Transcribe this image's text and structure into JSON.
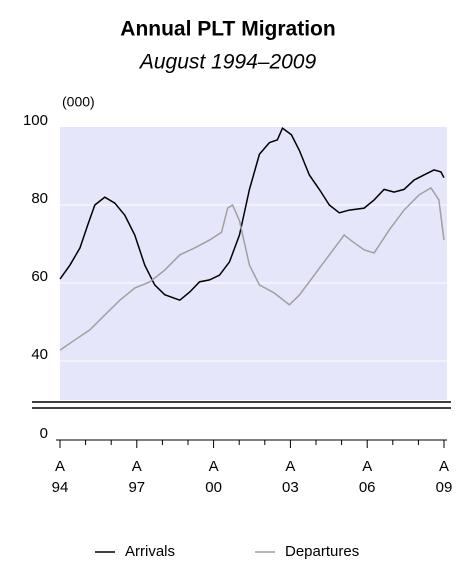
{
  "chart_data": {
    "type": "line",
    "title": "Annual PLT Migration",
    "subtitle": "August 1994–2009",
    "y_unit_label": "(000)",
    "xlim": [
      1994.58,
      2009.58
    ],
    "xticks": [
      {
        "value": 1994.58,
        "label": "94"
      },
      {
        "value": 1997.58,
        "label": "97"
      },
      {
        "value": 2000.58,
        "label": "00"
      },
      {
        "value": 2003.58,
        "label": "03"
      },
      {
        "value": 2006.58,
        "label": "06"
      },
      {
        "value": 2009.58,
        "label": "09"
      }
    ],
    "xtick_month_label": "A",
    "xminorticks": [
      1995.58,
      1996.58,
      1998.58,
      1999.58,
      2001.58,
      2002.58,
      2004.58,
      2005.58,
      2007.58,
      2008.58
    ],
    "ylim": [
      30,
      100
    ],
    "yticks": [
      0,
      40,
      60,
      80,
      100
    ],
    "axis_break": true,
    "grid": true,
    "background": "#e6e6fa",
    "series": [
      {
        "name": "Arrivals",
        "color": "#000000",
        "x": [
          1994.58,
          1994.97,
          1995.36,
          1995.67,
          1995.94,
          1996.33,
          1996.72,
          1997.11,
          1997.5,
          1997.89,
          1998.28,
          1998.67,
          1999.26,
          1999.65,
          2000.03,
          2000.42,
          2000.81,
          2001.2,
          2001.59,
          2001.98,
          2002.37,
          2002.76,
          2003.07,
          2003.27,
          2003.62,
          2003.93,
          2004.32,
          2004.71,
          2005.1,
          2005.49,
          2005.88,
          2006.46,
          2006.85,
          2007.24,
          2007.63,
          2008.02,
          2008.41,
          2008.8,
          2009.19,
          2009.46,
          2009.58
        ],
        "values": [
          61,
          64.6,
          69,
          75,
          80,
          82,
          80.5,
          77.4,
          72.3,
          64.6,
          59.5,
          57,
          55.6,
          57.7,
          60.3,
          60.8,
          62,
          65.4,
          72.3,
          84,
          93,
          96,
          96.7,
          99.7,
          98,
          94,
          87.7,
          84,
          80,
          78,
          78.7,
          79.2,
          81.3,
          84,
          83.3,
          84,
          86.4,
          87.7,
          89,
          88.5,
          87
        ]
      },
      {
        "name": "Departures",
        "color": "#a0a0a0",
        "x": [
          1994.58,
          1995.16,
          1995.75,
          1996.33,
          1996.92,
          1997.5,
          1998.09,
          1998.67,
          1999.26,
          1999.84,
          2000.42,
          2000.89,
          2001.13,
          2001.32,
          2001.59,
          2001.98,
          2002.37,
          2002.96,
          2003.54,
          2003.93,
          2004.51,
          2005.1,
          2005.68,
          2006.07,
          2006.46,
          2006.85,
          2007.44,
          2008.02,
          2008.61,
          2009.07,
          2009.38,
          2009.58
        ],
        "values": [
          42.8,
          45.4,
          48,
          51.8,
          55.6,
          58.7,
          60.3,
          63.3,
          67.2,
          69,
          71,
          73,
          79.2,
          80,
          76,
          64.6,
          59.5,
          57.4,
          54.4,
          56.9,
          62,
          67.2,
          72.3,
          70.3,
          68.5,
          67.7,
          73.6,
          78.7,
          82.6,
          84.4,
          81.3,
          71
        ]
      }
    ]
  }
}
